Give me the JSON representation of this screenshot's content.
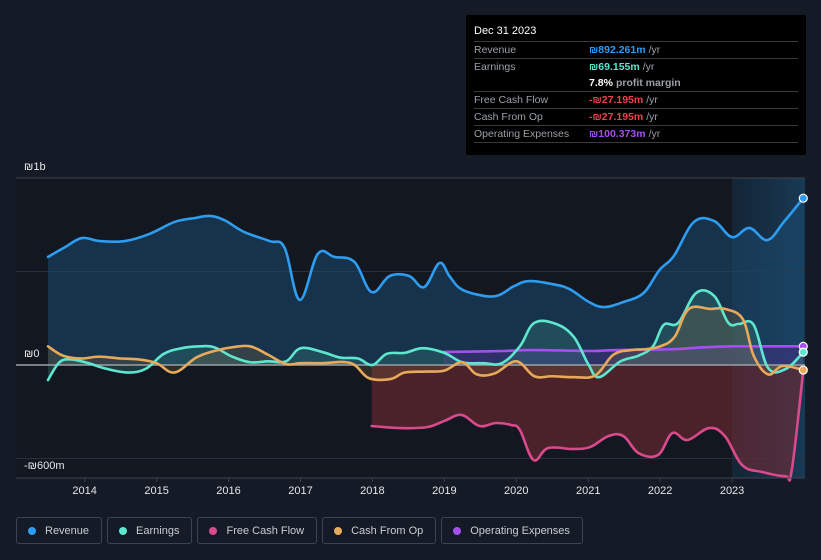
{
  "tooltip": {
    "date": "Dec 31 2023",
    "rows": [
      {
        "label": "Revenue",
        "value": "₪892.261m",
        "unit": "/yr",
        "color": "#2e9cf0"
      },
      {
        "label": "Earnings",
        "value": "₪69.155m",
        "unit": "/yr",
        "color": "#5ee6cf"
      },
      {
        "label": "",
        "margin_pct": "7.8%",
        "margin_text": "profit margin"
      },
      {
        "label": "Free Cash Flow",
        "value": "-₪27.195m",
        "unit": "/yr",
        "color": "#f0414a"
      },
      {
        "label": "Cash From Op",
        "value": "-₪27.195m",
        "unit": "/yr",
        "color": "#f0414a"
      },
      {
        "label": "Operating Expenses",
        "value": "₪100.373m",
        "unit": "/yr",
        "color": "#a64ff0"
      }
    ]
  },
  "legend": [
    {
      "label": "Revenue",
      "color": "#2e9cf0"
    },
    {
      "label": "Earnings",
      "color": "#5ee6cf"
    },
    {
      "label": "Free Cash Flow",
      "color": "#d94a8c"
    },
    {
      "label": "Cash From Op",
      "color": "#e8a95b"
    },
    {
      "label": "Operating Expenses",
      "color": "#a64ff0"
    }
  ],
  "chart_data": {
    "type": "line",
    "title": "",
    "xlabel": "",
    "ylabel": "",
    "currency": "₪",
    "unit": "m",
    "xlim": [
      2013.49,
      2024.0
    ],
    "ylim": [
      -604,
      1000
    ],
    "y_ticks": [
      {
        "value": 1000,
        "label": "₪1b"
      },
      {
        "value": 0,
        "label": "₪0"
      },
      {
        "value": -604,
        "label": "-₪600m"
      }
    ],
    "y_gridlines": [
      1000,
      500,
      0,
      -500
    ],
    "x_ticks": [
      2014,
      2015,
      2016,
      2017,
      2018,
      2019,
      2020,
      2021,
      2022,
      2023
    ],
    "highlight_range": [
      2023.0,
      2024.0
    ],
    "grid": true,
    "legend_position": "bottom",
    "series": [
      {
        "name": "Revenue",
        "color": "#2e9cf0",
        "points": [
          [
            2013.49,
            578
          ],
          [
            2013.73,
            631
          ],
          [
            2013.96,
            679
          ],
          [
            2014.21,
            663
          ],
          [
            2014.56,
            663
          ],
          [
            2014.9,
            701
          ],
          [
            2015.25,
            765
          ],
          [
            2015.53,
            786
          ],
          [
            2015.74,
            797
          ],
          [
            2015.94,
            775
          ],
          [
            2016.22,
            711
          ],
          [
            2016.57,
            663
          ],
          [
            2016.78,
            626
          ],
          [
            2016.99,
            348
          ],
          [
            2017.24,
            594
          ],
          [
            2017.47,
            578
          ],
          [
            2017.75,
            551
          ],
          [
            2017.99,
            390
          ],
          [
            2018.24,
            476
          ],
          [
            2018.51,
            476
          ],
          [
            2018.72,
            417
          ],
          [
            2018.93,
            545
          ],
          [
            2019.07,
            476
          ],
          [
            2019.21,
            412
          ],
          [
            2019.42,
            380
          ],
          [
            2019.72,
            369
          ],
          [
            2019.97,
            422
          ],
          [
            2020.18,
            449
          ],
          [
            2020.5,
            433
          ],
          [
            2020.74,
            406
          ],
          [
            2021.01,
            337
          ],
          [
            2021.22,
            310
          ],
          [
            2021.49,
            337
          ],
          [
            2021.77,
            385
          ],
          [
            2021.99,
            508
          ],
          [
            2022.19,
            583
          ],
          [
            2022.47,
            765
          ],
          [
            2022.75,
            770
          ],
          [
            2023.0,
            684
          ],
          [
            2023.24,
            733
          ],
          [
            2023.49,
            668
          ],
          [
            2023.72,
            765
          ],
          [
            2023.99,
            892
          ]
        ]
      },
      {
        "name": "Earnings",
        "color": "#5ee6cf",
        "points": [
          [
            2013.49,
            -80
          ],
          [
            2013.65,
            15
          ],
          [
            2013.82,
            30
          ],
          [
            2014.05,
            10
          ],
          [
            2014.3,
            -20
          ],
          [
            2014.6,
            -40
          ],
          [
            2014.85,
            -20
          ],
          [
            2015.1,
            60
          ],
          [
            2015.35,
            90
          ],
          [
            2015.6,
            100
          ],
          [
            2015.8,
            95
          ],
          [
            2016.05,
            45
          ],
          [
            2016.3,
            15
          ],
          [
            2016.55,
            20
          ],
          [
            2016.8,
            20
          ],
          [
            2017.0,
            90
          ],
          [
            2017.3,
            70
          ],
          [
            2017.55,
            40
          ],
          [
            2017.8,
            35
          ],
          [
            2018.0,
            0
          ],
          [
            2018.2,
            60
          ],
          [
            2018.45,
            65
          ],
          [
            2018.7,
            90
          ],
          [
            2019.0,
            65
          ],
          [
            2019.25,
            15
          ],
          [
            2019.55,
            10
          ],
          [
            2019.8,
            10
          ],
          [
            2020.05,
            100
          ],
          [
            2020.25,
            225
          ],
          [
            2020.55,
            220
          ],
          [
            2020.8,
            150
          ],
          [
            2021.0,
            5
          ],
          [
            2021.15,
            -65
          ],
          [
            2021.45,
            20
          ],
          [
            2021.7,
            50
          ],
          [
            2021.9,
            100
          ],
          [
            2022.05,
            215
          ],
          [
            2022.25,
            225
          ],
          [
            2022.5,
            385
          ],
          [
            2022.75,
            370
          ],
          [
            2022.95,
            225
          ],
          [
            2023.1,
            220
          ],
          [
            2023.3,
            215
          ],
          [
            2023.5,
            -15
          ],
          [
            2023.75,
            -20
          ],
          [
            2023.99,
            69
          ]
        ]
      },
      {
        "name": "Free Cash Flow",
        "color": "#d94a8c",
        "points": [
          [
            2017.99,
            -326
          ],
          [
            2018.38,
            -337
          ],
          [
            2018.76,
            -332
          ],
          [
            2019.0,
            -299
          ],
          [
            2019.24,
            -267
          ],
          [
            2019.49,
            -326
          ],
          [
            2019.72,
            -310
          ],
          [
            2019.93,
            -321
          ],
          [
            2020.05,
            -347
          ],
          [
            2020.24,
            -508
          ],
          [
            2020.44,
            -444
          ],
          [
            2020.79,
            -449
          ],
          [
            2021.03,
            -438
          ],
          [
            2021.28,
            -380
          ],
          [
            2021.49,
            -380
          ],
          [
            2021.7,
            -471
          ],
          [
            2021.97,
            -481
          ],
          [
            2022.17,
            -364
          ],
          [
            2022.38,
            -401
          ],
          [
            2022.68,
            -337
          ],
          [
            2022.9,
            -380
          ],
          [
            2023.14,
            -535
          ],
          [
            2023.42,
            -572
          ],
          [
            2023.74,
            -594
          ],
          [
            2023.83,
            -562
          ],
          [
            2023.99,
            -27
          ]
        ]
      },
      {
        "name": "Cash From Op",
        "color": "#e8a95b",
        "points": [
          [
            2013.49,
            100
          ],
          [
            2013.7,
            50
          ],
          [
            2013.95,
            35
          ],
          [
            2014.2,
            45
          ],
          [
            2014.5,
            35
          ],
          [
            2014.75,
            30
          ],
          [
            2015.0,
            10
          ],
          [
            2015.25,
            -40
          ],
          [
            2015.55,
            40
          ],
          [
            2015.8,
            75
          ],
          [
            2016.05,
            95
          ],
          [
            2016.3,
            100
          ],
          [
            2016.55,
            55
          ],
          [
            2016.8,
            5
          ],
          [
            2017.0,
            10
          ],
          [
            2017.3,
            10
          ],
          [
            2017.7,
            10
          ],
          [
            2017.95,
            -70
          ],
          [
            2018.25,
            -75
          ],
          [
            2018.45,
            -40
          ],
          [
            2018.75,
            -35
          ],
          [
            2019.0,
            -30
          ],
          [
            2019.25,
            15
          ],
          [
            2019.45,
            -50
          ],
          [
            2019.7,
            -45
          ],
          [
            2020.0,
            20
          ],
          [
            2020.25,
            -60
          ],
          [
            2020.5,
            -60
          ],
          [
            2020.8,
            -65
          ],
          [
            2021.1,
            -55
          ],
          [
            2021.35,
            55
          ],
          [
            2021.6,
            80
          ],
          [
            2021.8,
            85
          ],
          [
            2022.0,
            100
          ],
          [
            2022.2,
            150
          ],
          [
            2022.4,
            300
          ],
          [
            2022.7,
            300
          ],
          [
            2022.9,
            300
          ],
          [
            2023.15,
            245
          ],
          [
            2023.3,
            50
          ],
          [
            2023.5,
            -50
          ],
          [
            2023.7,
            -5
          ],
          [
            2023.99,
            -27
          ]
        ]
      },
      {
        "name": "Operating Expenses",
        "color": "#a64ff0",
        "points": [
          [
            2018.99,
            70
          ],
          [
            2019.4,
            72
          ],
          [
            2019.8,
            75
          ],
          [
            2020.2,
            80
          ],
          [
            2020.6,
            78
          ],
          [
            2021.0,
            75
          ],
          [
            2021.4,
            80
          ],
          [
            2021.8,
            82
          ],
          [
            2022.2,
            85
          ],
          [
            2022.6,
            95
          ],
          [
            2023.0,
            100
          ],
          [
            2023.5,
            100
          ],
          [
            2023.99,
            100
          ]
        ]
      }
    ]
  }
}
